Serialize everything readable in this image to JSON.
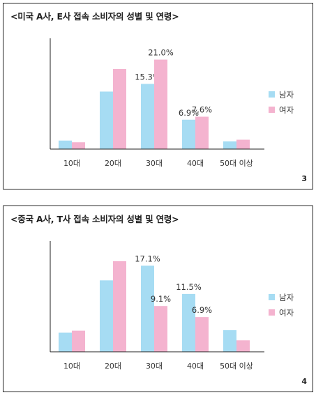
{
  "colors": {
    "male": "#a6dcf3",
    "female": "#f4b3cf",
    "axis": "#222222"
  },
  "panels": [
    {
      "title": "<미국 A사, E사 접속 소비자의 성별 및 연령>",
      "number": "3"
    },
    {
      "title": "<중국 A사, T사 접속 소비자의 성별 및 연령>",
      "number": "4"
    }
  ],
  "chart_data": [
    {
      "type": "bar",
      "categories": [
        "10대",
        "20대",
        "30대",
        "40대",
        "50대 이상"
      ],
      "series": [
        {
          "name": "남자",
          "values": [
            2.0,
            13.5,
            15.3,
            6.9,
            1.8
          ],
          "labels": [
            "",
            "",
            "15.3%",
            "6.9%",
            ""
          ]
        },
        {
          "name": "여자",
          "values": [
            1.6,
            18.8,
            21.0,
            7.6,
            2.2
          ],
          "labels": [
            "",
            "",
            "21.0%",
            "7.6%",
            ""
          ]
        }
      ],
      "ylim": [
        0,
        26
      ],
      "legend": "right"
    },
    {
      "type": "bar",
      "categories": [
        "10대",
        "20대",
        "30대",
        "40대",
        "50대 이상"
      ],
      "series": [
        {
          "name": "남자",
          "values": [
            3.8,
            14.2,
            17.1,
            11.5,
            4.3
          ],
          "labels": [
            "",
            "",
            "17.1%",
            "11.5%",
            ""
          ]
        },
        {
          "name": "여자",
          "values": [
            4.2,
            18.0,
            9.1,
            6.9,
            2.3
          ],
          "labels": [
            "",
            "",
            "9.1%",
            "6.9%",
            ""
          ]
        }
      ],
      "ylim": [
        0,
        22
      ],
      "legend": "right"
    }
  ]
}
